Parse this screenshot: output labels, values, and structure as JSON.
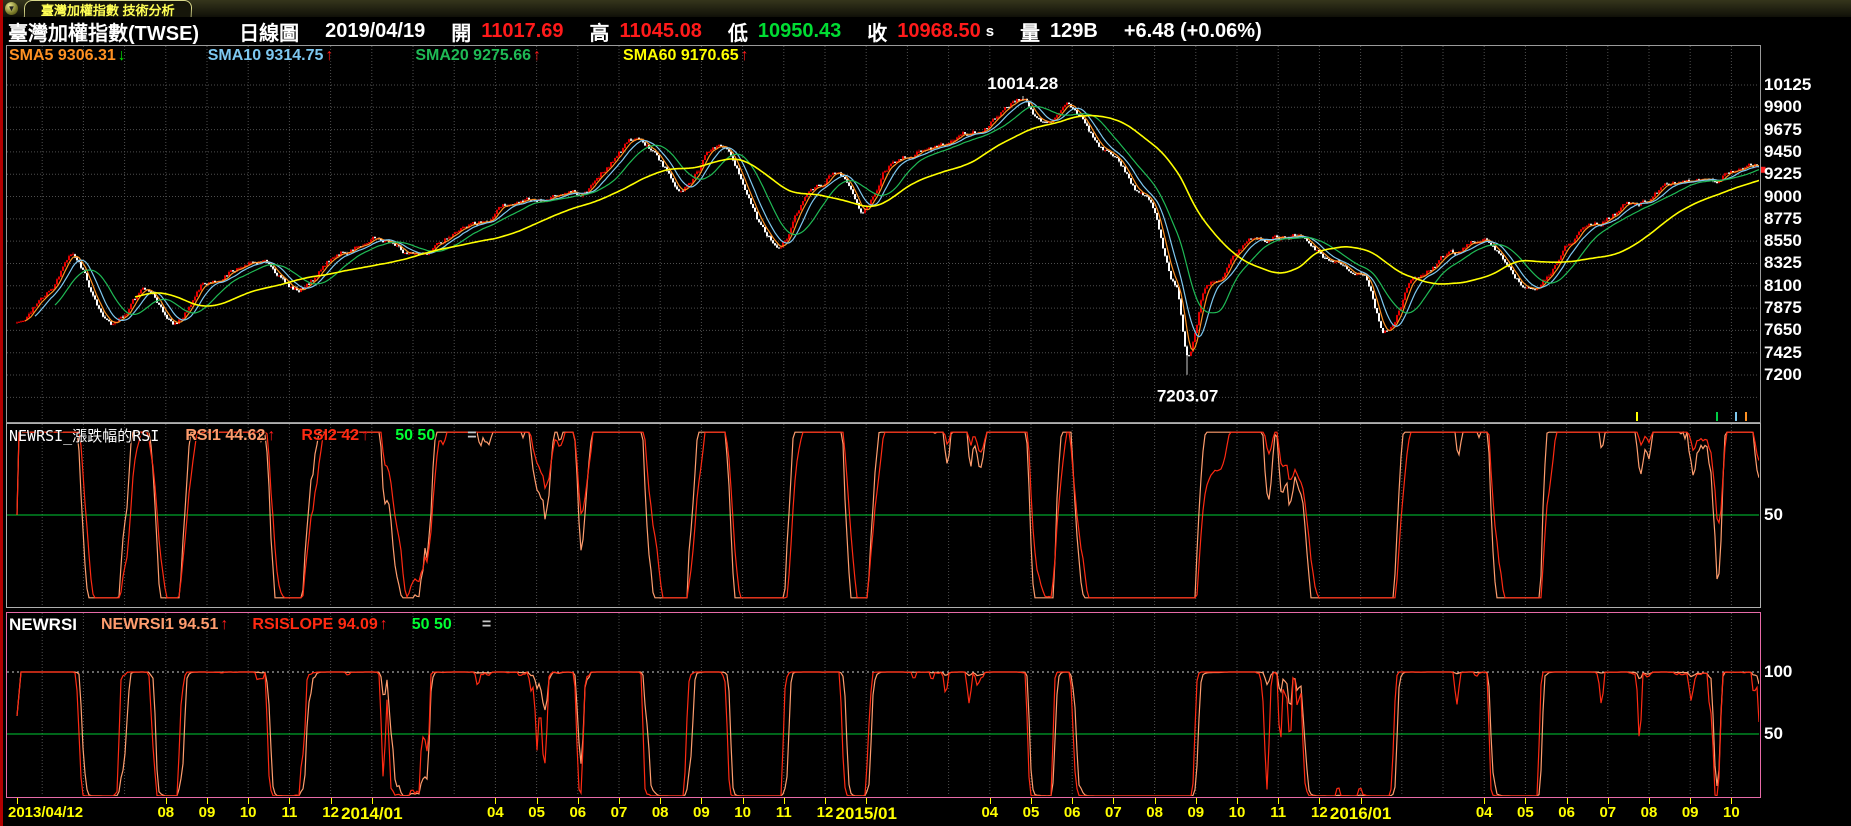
{
  "title_bar": {
    "tab": "臺灣加權指數 技術分析",
    "dropdown_icon": "▼"
  },
  "header": {
    "name": "臺灣加權指數(TWSE)",
    "period": "日線圖",
    "date": "2019/04/19",
    "open_label": "開",
    "open": "11017.69",
    "high_label": "高",
    "high": "11045.08",
    "low_label": "低",
    "low": "10950.43",
    "close_label": "收",
    "close": "10968.50",
    "close_suffix": "s",
    "vol_label": "量",
    "volume": "129B",
    "change": "+6.48 (+0.06%)"
  },
  "colors": {
    "up": "#e60000",
    "down": "#ffffff",
    "grid": "#4e4e4e",
    "extra_grid": "#4e4e4e",
    "axis_text": "#ffff00",
    "price_text": "#ffffff",
    "panel_border": "#9a9a9a",
    "mid_panel_border": "#b0b0b0",
    "bottom_panel_border": "#e76ba8",
    "rsi1": "#ff9d6e",
    "rsi2": "#ff2a12",
    "midline_green": "#00cc33",
    "dotted_white": "#cfcfcf",
    "header_red": "#ff1a1a",
    "header_green": "#00dd33",
    "frame_red": "#b40000",
    "price_marker_red": "#ff2020"
  },
  "chart_data": [
    {
      "type": "candlestick",
      "title": "臺灣加權指數(TWSE) 日線圖",
      "x_range": [
        "2013/04/12",
        "2016/11"
      ],
      "y_ticks": [
        10125,
        9900,
        9675,
        9450,
        9225,
        9000,
        8775,
        8550,
        8325,
        8100,
        7875,
        7650,
        7425,
        7200
      ],
      "extra_gridline": 6975,
      "legend": [
        {
          "text": "SMA5 9306.31",
          "color": "#ff9122",
          "arrow": "↓",
          "arrow_color": "#00e000"
        },
        {
          "text": "SMA10 9314.75",
          "color": "#7ec8f0",
          "arrow": "↑",
          "arrow_color": "#ff1a1a"
        },
        {
          "text": "SMA20 9275.66",
          "color": "#1fba55",
          "arrow": "↑",
          "arrow_color": "#ff1a1a"
        },
        {
          "text": "SMA60 9170.65",
          "color": "#ffff00",
          "arrow": "↑",
          "arrow_color": "#ff1a1a"
        }
      ],
      "sma_periods": [
        5,
        10,
        20,
        60
      ],
      "sma_colors": [
        "#ff9122",
        "#7ec8f0",
        "#1fba55",
        "#ffff00"
      ],
      "annotations": [
        {
          "text": "10014.28",
          "M": 24.8,
          "price": 10014.28,
          "dir": "high"
        },
        {
          "text": "7203.07",
          "M": 28.8,
          "price": 7203.07,
          "dir": "low"
        }
      ],
      "trend_anchors": [
        [
          0.4,
          7760
        ],
        [
          1.2,
          8060
        ],
        [
          1.7,
          8360
        ],
        [
          2.7,
          7690
        ],
        [
          3.5,
          8040
        ],
        [
          4.2,
          7740
        ],
        [
          5.0,
          8160
        ],
        [
          6.3,
          8360
        ],
        [
          7.2,
          8090
        ],
        [
          8.5,
          8480
        ],
        [
          9.2,
          8600
        ],
        [
          10.1,
          8400
        ],
        [
          11.5,
          8750
        ],
        [
          12.5,
          8950
        ],
        [
          14.0,
          9030
        ],
        [
          15.5,
          9590
        ],
        [
          16.5,
          9120
        ],
        [
          17.4,
          9480
        ],
        [
          18.8,
          8520
        ],
        [
          19.8,
          9080
        ],
        [
          20.3,
          9290
        ],
        [
          20.9,
          8860
        ],
        [
          21.6,
          9330
        ],
        [
          22.5,
          9480
        ],
        [
          23.5,
          9620
        ],
        [
          24.8,
          10000
        ],
        [
          25.3,
          9760
        ],
        [
          25.9,
          9900
        ],
        [
          26.8,
          9500
        ],
        [
          27.8,
          9000
        ],
        [
          28.5,
          8100
        ],
        [
          28.8,
          7450
        ],
        [
          29.3,
          8150
        ],
        [
          30.4,
          8520
        ],
        [
          31.5,
          8600
        ],
        [
          32.3,
          8380
        ],
        [
          33.0,
          8250
        ],
        [
          33.6,
          7680
        ],
        [
          34.3,
          8150
        ],
        [
          35.2,
          8420
        ],
        [
          35.9,
          8540
        ],
        [
          37.1,
          8120
        ],
        [
          38.5,
          8650
        ],
        [
          39.5,
          8900
        ],
        [
          40.5,
          9100
        ],
        [
          41.5,
          9210
        ],
        [
          42.6,
          9320
        ],
        [
          43.3,
          9280
        ]
      ],
      "price_marker": 9270,
      "bottom_marks": [
        {
          "x": 1637,
          "color": "#ffff00"
        },
        {
          "x": 1717,
          "color": "#00cc44"
        },
        {
          "x": 1736,
          "color": "#7ec8f0"
        },
        {
          "x": 1746,
          "color": "#ff9122"
        }
      ]
    },
    {
      "type": "line",
      "title": "NEWRSI_漲跌幅的RSI",
      "legend": [
        {
          "text": "RSI1 44.62",
          "color": "#ff9d6e",
          "arrow": "↑",
          "arrow_color": "#ff1a1a"
        },
        {
          "text": "RSI2 42",
          "color": "#ff2a12",
          "arrow": "↑",
          "arrow_color": "#ff1a1a"
        }
      ],
      "levels": "50 50",
      "eq": "=",
      "ref_lines": [
        {
          "v": 50,
          "style": "solid",
          "color": "#00cc33"
        }
      ],
      "right_labels": [
        50
      ],
      "ylim": [
        0,
        100
      ]
    },
    {
      "type": "line",
      "title": "NEWRSI",
      "legend": [
        {
          "text": "NEWRSI1 94.51",
          "color": "#ff9d6e",
          "arrow": "↑",
          "arrow_color": "#ff1a1a"
        },
        {
          "text": "RSISLOPE 94.09",
          "color": "#ff2a12",
          "arrow": "↑",
          "arrow_color": "#ff1a1a"
        }
      ],
      "levels": "50 50",
      "eq": "=",
      "ref_lines": [
        {
          "v": 100,
          "style": "dotted",
          "color": "#cfcfcf"
        },
        {
          "v": 50,
          "style": "solid",
          "color": "#00cc33"
        }
      ],
      "right_labels": [
        100,
        50
      ],
      "ylim": [
        0,
        100
      ]
    }
  ],
  "x_axis": {
    "labels": [
      {
        "text": "2013/04/12",
        "M": 0,
        "year": false
      },
      {
        "text": "08",
        "M": 4
      },
      {
        "text": "09",
        "M": 5
      },
      {
        "text": "10",
        "M": 6
      },
      {
        "text": "11",
        "M": 7
      },
      {
        "text": "12",
        "M": 8
      },
      {
        "text": "2014/01",
        "M": 9,
        "year": true
      },
      {
        "text": "04",
        "M": 12
      },
      {
        "text": "05",
        "M": 13
      },
      {
        "text": "06",
        "M": 14
      },
      {
        "text": "07",
        "M": 15
      },
      {
        "text": "08",
        "M": 16
      },
      {
        "text": "09",
        "M": 17
      },
      {
        "text": "10",
        "M": 18
      },
      {
        "text": "11",
        "M": 19
      },
      {
        "text": "12",
        "M": 20
      },
      {
        "text": "2015/01",
        "M": 21,
        "year": true
      },
      {
        "text": "04",
        "M": 24
      },
      {
        "text": "05",
        "M": 25
      },
      {
        "text": "06",
        "M": 26
      },
      {
        "text": "07",
        "M": 27
      },
      {
        "text": "08",
        "M": 28
      },
      {
        "text": "09",
        "M": 29
      },
      {
        "text": "10",
        "M": 30
      },
      {
        "text": "11",
        "M": 31
      },
      {
        "text": "12",
        "M": 32
      },
      {
        "text": "2016/01",
        "M": 33,
        "year": true
      },
      {
        "text": "04",
        "M": 36
      },
      {
        "text": "05",
        "M": 37
      },
      {
        "text": "06",
        "M": 38
      },
      {
        "text": "07",
        "M": 39
      },
      {
        "text": "08",
        "M": 40
      },
      {
        "text": "09",
        "M": 41
      },
      {
        "text": "10",
        "M": 42
      }
    ]
  }
}
